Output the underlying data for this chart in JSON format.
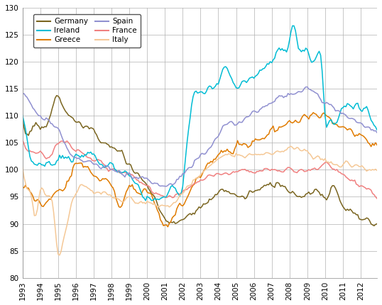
{
  "title": "",
  "xlim": [
    1993.0,
    2012.92
  ],
  "ylim": [
    80,
    130
  ],
  "yticks": [
    80,
    85,
    90,
    95,
    100,
    105,
    110,
    115,
    120,
    125,
    130
  ],
  "xtick_years": [
    1993,
    1994,
    1995,
    1996,
    1997,
    1998,
    1999,
    2000,
    2001,
    2002,
    2003,
    2004,
    2005,
    2006,
    2007,
    2008,
    2009,
    2010,
    2011,
    2012
  ],
  "colors": {
    "Germany": "#7a6520",
    "Greece": "#e07b00",
    "France": "#f08080",
    "Ireland": "#00bcd4",
    "Spain": "#9090d0",
    "Italy": "#f5c896"
  },
  "background_color": "#ffffff",
  "grid_color": "#b0b0b0"
}
